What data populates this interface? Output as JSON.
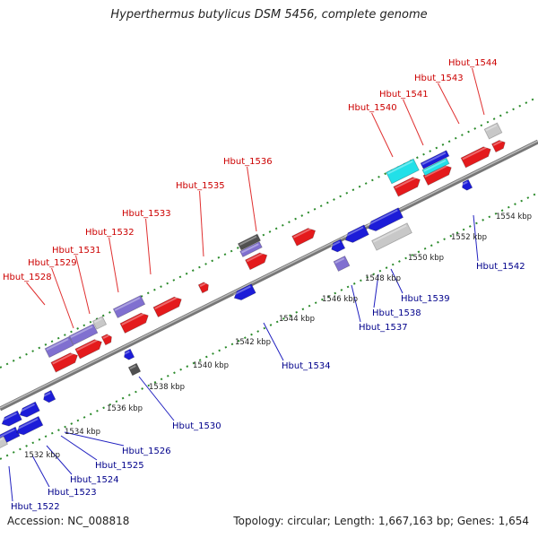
{
  "title": "Hyperthermus butylicus DSM 5456, complete genome",
  "footer": {
    "accession": "Accession: NC_008818",
    "summary": "Topology: circular; Length: 1,667,163 bp; Genes: 1,654"
  },
  "colors": {
    "forward": "#e41a1c",
    "reverse": "#1c1cd8",
    "rna": "#8070d0",
    "pseudo": "#c8c8c8",
    "special": "#22e0e8",
    "dark": "#505050",
    "tick": "#2a8a2a",
    "backbone": "#888888"
  },
  "scale_labels": [
    "1532 kbp",
    "1534 kbp",
    "1536 kbp",
    "1538 kbp",
    "1540 kbp",
    "1542 kbp",
    "1544 kbp",
    "1546 kbp",
    "1548 kbp",
    "1550 kbp",
    "1552 kbp",
    "1554 kbp"
  ],
  "forward_labels": [
    "Hbut_1528",
    "Hbut_1529",
    "Hbut_1531",
    "Hbut_1532",
    "Hbut_1533",
    "Hbut_1535",
    "Hbut_1536",
    "Hbut_1540",
    "Hbut_1541",
    "Hbut_1543",
    "Hbut_1544"
  ],
  "reverse_labels": [
    "Hbut_1522",
    "Hbut_1523",
    "Hbut_1524",
    "Hbut_1525",
    "Hbut_1526",
    "Hbut_1530",
    "Hbut_1534",
    "Hbut_1537",
    "Hbut_1538",
    "Hbut_1539",
    "Hbut_1542"
  ]
}
